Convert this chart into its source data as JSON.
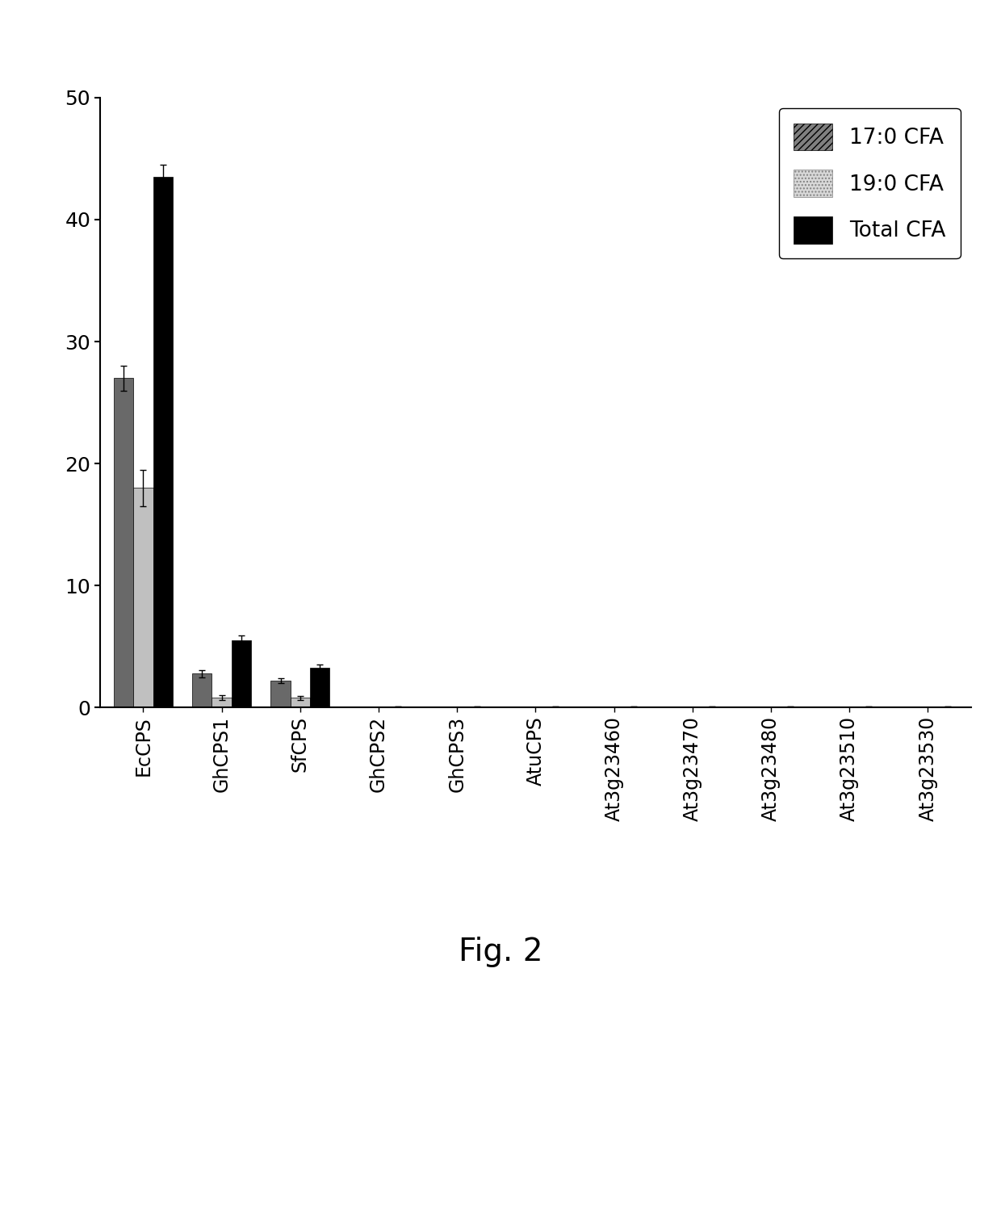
{
  "categories": [
    "EcCPS",
    "GhCPS1",
    "SfCPS",
    "GhCPS2",
    "GhCPS3",
    "AtuCPS",
    "At3g23460",
    "At3g23470",
    "At3g23480",
    "At3g23510",
    "At3g23530"
  ],
  "cfa17": [
    27.0,
    2.8,
    2.2,
    0.05,
    0.05,
    0.05,
    0.05,
    0.05,
    0.05,
    0.05,
    0.05
  ],
  "cfa19": [
    18.0,
    0.8,
    0.8,
    0.05,
    0.05,
    0.05,
    0.05,
    0.05,
    0.05,
    0.05,
    0.05
  ],
  "total": [
    43.5,
    5.5,
    3.3,
    0.1,
    0.1,
    0.1,
    0.1,
    0.1,
    0.1,
    0.1,
    0.1
  ],
  "cfa17_err": [
    1.0,
    0.3,
    0.2,
    0.0,
    0.0,
    0.0,
    0.0,
    0.0,
    0.0,
    0.0,
    0.0
  ],
  "cfa19_err": [
    1.5,
    0.2,
    0.15,
    0.0,
    0.0,
    0.0,
    0.0,
    0.0,
    0.0,
    0.0,
    0.0
  ],
  "total_err": [
    1.0,
    0.4,
    0.2,
    0.0,
    0.0,
    0.0,
    0.0,
    0.0,
    0.0,
    0.0,
    0.0
  ],
  "color_17": "#696969",
  "color_19": "#c0c0c0",
  "color_total": "#000000",
  "ylim": [
    0,
    50
  ],
  "yticks": [
    0,
    10,
    20,
    30,
    40,
    50
  ],
  "figure_label": "Fig. 2",
  "bar_width": 0.25,
  "legend_labels": [
    "17:0 CFA",
    "19:0 CFA",
    "Total CFA"
  ]
}
